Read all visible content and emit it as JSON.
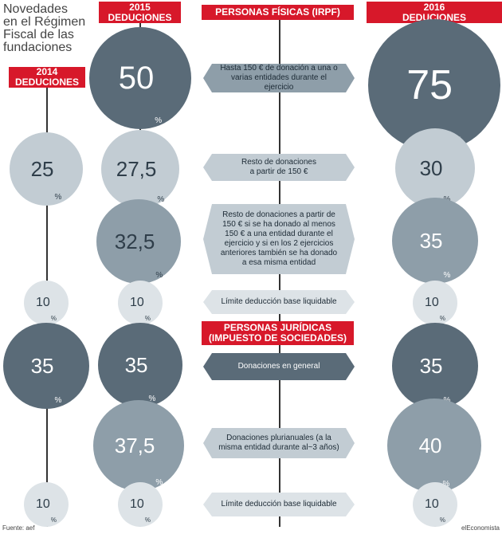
{
  "title_lines": [
    "Novedades",
    "en el Régimen",
    "Fiscal de las",
    "fundaciones"
  ],
  "headers": {
    "h2015": [
      "2015",
      "DEDUCIONES"
    ],
    "h2014": [
      "2014",
      "DEDUCIONES"
    ],
    "h2016": [
      "2016",
      "DEDUCIONES"
    ],
    "fisicas": "PERSONAS FÍSICAS (IRPF)",
    "juridicas": [
      "PERSONAS JURÍDICAS",
      "(IMPUESTO DE SOCIEDADES)"
    ]
  },
  "colors": {
    "accent_red": "#d7182a",
    "dark": "#5a6b78",
    "mid": "#8e9ea9",
    "light": "#c2ccd3",
    "pale": "#dde3e7"
  },
  "chart_data": {
    "type": "table",
    "unit": "%",
    "columns": [
      "2014",
      "2015",
      "2016"
    ],
    "rows": [
      {
        "section": "PERSONAS FÍSICAS (IRPF)",
        "label": "Hasta 150 € de donación a una o varias entidades durante el ejercicio",
        "values": [
          null,
          "50",
          "75"
        ]
      },
      {
        "section": "PERSONAS FÍSICAS (IRPF)",
        "label": "Resto de donaciones a partir de 150 €",
        "values": [
          "25",
          "27,5",
          "30"
        ]
      },
      {
        "section": "PERSONAS FÍSICAS (IRPF)",
        "label": "Resto de donaciones a partir de 150 € si se ha donado al menos 150 € a una entidad durante el ejercicio y si en los 2 ejercicios anteriores también se ha donado a esa misma entidad",
        "values": [
          null,
          "32,5",
          "35"
        ]
      },
      {
        "section": "PERSONAS FÍSICAS (IRPF)",
        "label": "Límite deducción base liquidable",
        "values": [
          "10",
          "10",
          "10"
        ]
      },
      {
        "section": "PERSONAS JURÍDICAS (IMPUESTO DE SOCIEDADES)",
        "label": "Donaciones en general",
        "values": [
          "35",
          "35",
          "35"
        ]
      },
      {
        "section": "PERSONAS JURÍDICAS (IMPUESTO DE SOCIEDADES)",
        "label": "Donaciones plurianuales (a la misma entidad durante al~3 años)",
        "values": [
          null,
          "37,5",
          "40"
        ]
      },
      {
        "section": "PERSONAS JURÍDICAS (IMPUESTO DE SOCIEDADES)",
        "label": "Límite deducción base liquidable",
        "values": [
          "10",
          "10",
          "10"
        ]
      }
    ]
  },
  "rowlabels": [
    [
      "Hasta 150 € de donación a una o",
      "varias entidades durante el ejercicio"
    ],
    [
      "Resto de donaciones",
      "a partir de 150 €"
    ],
    [
      "Resto de donaciones a partir de",
      "150 € si se ha donado al menos",
      "150 € a una entidad durante el",
      "ejercicio y si en los 2 ejercicios",
      "anteriores también se ha donado",
      "a esa misma entidad"
    ],
    [
      "Límite deducción base liquidable"
    ],
    [
      "Donaciones en general"
    ],
    [
      "Donaciones plurianuales (a la",
      "misma entidad durante al~3 años)"
    ],
    [
      "Límite deducción base liquidable"
    ]
  ],
  "footer": {
    "source": "Fuente: aef",
    "brand": "elEconomista"
  }
}
